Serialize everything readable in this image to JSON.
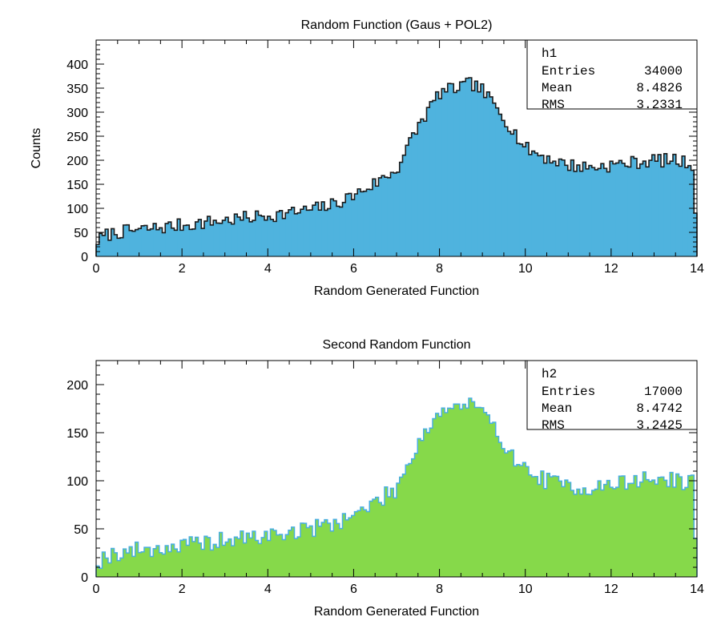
{
  "chart_data": [
    {
      "type": "histogram",
      "name": "h1",
      "title": "Random Function (Gaus + POL2)",
      "xlabel": "Random Generated Function",
      "ylabel": "Counts",
      "xlim": [
        0,
        14
      ],
      "ylim": [
        0,
        450
      ],
      "xticks": [
        0,
        2,
        4,
        6,
        8,
        10,
        12,
        14
      ],
      "yticks": [
        0,
        50,
        100,
        150,
        200,
        250,
        300,
        350,
        400
      ],
      "fill_color": "#4fb3de",
      "line_color": "#1a1a1a",
      "stats": {
        "name": "h1",
        "entries_label": "Entries",
        "entries": "34000",
        "mean_label": "Mean",
        "mean": "8.4826",
        "rms_label": "RMS",
        "rms": "3.2331"
      },
      "anchors_x": [
        0,
        0.25,
        0.5,
        1,
        1.5,
        2,
        2.5,
        3,
        3.5,
        4,
        4.5,
        5,
        5.5,
        6,
        6.5,
        7,
        7.5,
        8,
        8.5,
        8.75,
        9,
        9.5,
        10,
        10.5,
        11,
        11.5,
        12,
        12.5,
        13,
        13.5,
        14
      ],
      "anchors_y": [
        30,
        45,
        50,
        55,
        60,
        65,
        70,
        75,
        80,
        85,
        90,
        97,
        107,
        127,
        152,
        180,
        270,
        340,
        353,
        360,
        345,
        290,
        225,
        205,
        190,
        185,
        190,
        195,
        200,
        200,
        190
      ],
      "noise": 14,
      "seed": 7,
      "last_bin": 90
    },
    {
      "type": "histogram",
      "name": "h2",
      "title": "Second Random Function",
      "xlabel": "Random Generated Function",
      "ylabel": "",
      "xlim": [
        0,
        14
      ],
      "ylim": [
        0,
        225
      ],
      "xticks": [
        0,
        2,
        4,
        6,
        8,
        10,
        12,
        14
      ],
      "yticks": [
        0,
        50,
        100,
        150,
        200
      ],
      "fill_color": "#86d94a",
      "line_color": "#49aee0",
      "stats": {
        "name": "h2",
        "entries_label": "Entries",
        "entries": "17000",
        "mean_label": "Mean",
        "mean": "8.4742",
        "rms_label": "RMS",
        "rms": "3.2425"
      },
      "anchors_x": [
        0,
        0.25,
        0.5,
        1,
        1.5,
        2,
        2.5,
        3,
        3.5,
        4,
        4.5,
        5,
        5.5,
        6,
        6.5,
        7,
        7.5,
        8,
        8.5,
        8.75,
        9,
        9.5,
        10,
        10.5,
        11,
        11.5,
        12,
        12.5,
        13,
        13.5,
        14
      ],
      "anchors_y": [
        15,
        22,
        25,
        28,
        30,
        32,
        35,
        38,
        40,
        43,
        46,
        50,
        56,
        64,
        77,
        92,
        140,
        172,
        178,
        180,
        170,
        140,
        110,
        100,
        95,
        92,
        95,
        100,
        102,
        100,
        98
      ],
      "noise": 9,
      "seed": 19,
      "last_bin": 40
    }
  ]
}
